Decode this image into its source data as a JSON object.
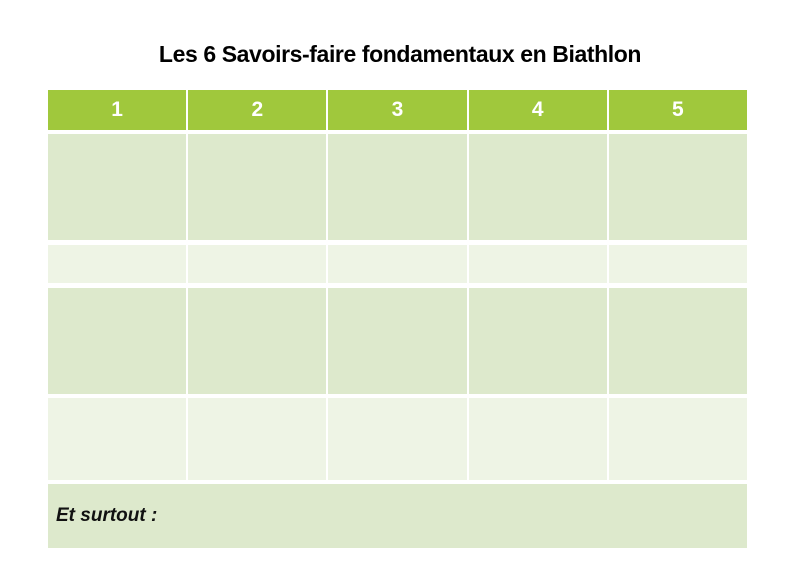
{
  "title": "Les 6 Savoirs-faire fondamentaux en Biathlon",
  "table": {
    "headers": [
      "1",
      "2",
      "3",
      "4",
      "5"
    ],
    "body_rows": [
      [
        "",
        "",
        "",
        "",
        ""
      ],
      [
        "",
        "",
        "",
        "",
        ""
      ],
      [
        "",
        "",
        "",
        "",
        ""
      ],
      [
        "",
        "",
        "",
        "",
        ""
      ]
    ],
    "footer": "Et surtout :"
  },
  "colors": {
    "header_green": "#a0c83c",
    "band_dark": "#dde9cc",
    "band_light": "#eef4e5",
    "header_text": "#ffffff",
    "title_text": "#000000"
  }
}
